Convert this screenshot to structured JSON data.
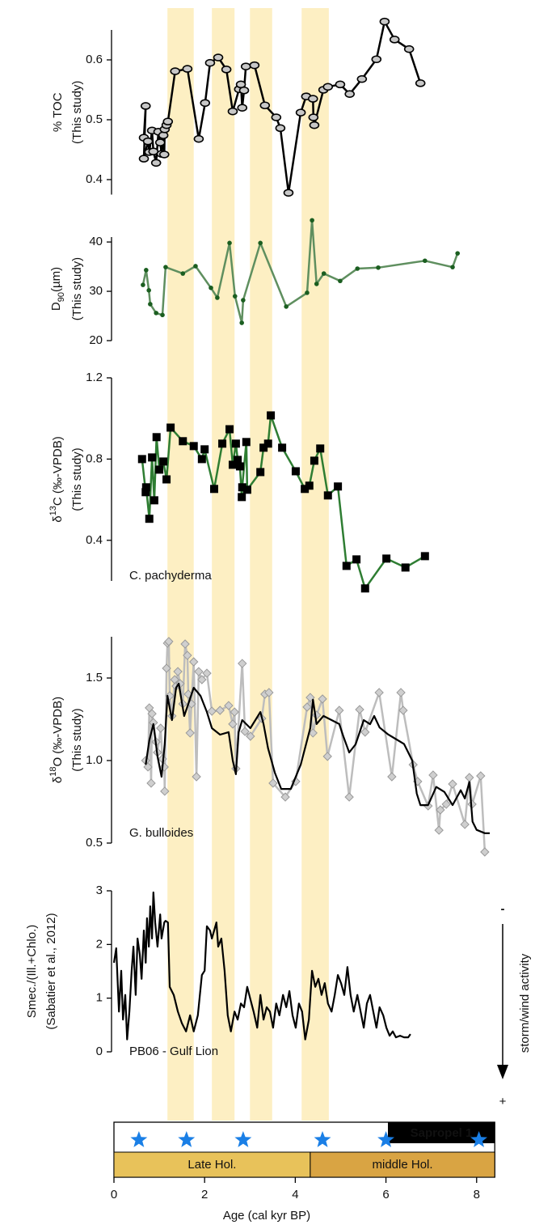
{
  "x_axis": {
    "label": "Age (cal kyr BP)",
    "xlim": [
      0,
      8.4
    ],
    "xticks": [
      0,
      2,
      4,
      6,
      8
    ]
  },
  "bands": {
    "color": "#fdefc3",
    "ranges": [
      [
        1.18,
        1.76
      ],
      [
        2.16,
        2.66
      ],
      [
        3.0,
        3.49
      ],
      [
        4.14,
        4.74
      ]
    ]
  },
  "chart_data": [
    {
      "type": "line",
      "ylabel": [
        [
          "% TOC"
        ],
        [
          "(This study)"
        ]
      ],
      "ylim": [
        0.375,
        0.65
      ],
      "yticks": [
        0.4,
        0.5,
        0.6
      ],
      "series": [
        {
          "color": "#000000",
          "marker": "ellipse",
          "marker_color": "#c8c8c8",
          "x": [
            0.66,
            0.7,
            0.66,
            0.75,
            0.78,
            0.84,
            0.87,
            0.93,
            0.98,
            1.02,
            1.05,
            1.09,
            1.11,
            1.12,
            1.16,
            1.19,
            1.35,
            1.62,
            1.87,
            2.01,
            2.12,
            2.3,
            2.48,
            2.62,
            2.76,
            2.8,
            2.83,
            2.87,
            2.91,
            3.1,
            3.33,
            3.58,
            3.67,
            3.85,
            4.12,
            4.24,
            4.39,
            4.4,
            4.42,
            4.62,
            4.72,
            4.99,
            5.2,
            5.47,
            5.79,
            5.97,
            6.19,
            6.51,
            6.76
          ],
          "values": [
            0.47,
            0.523,
            0.435,
            0.464,
            0.446,
            0.482,
            0.447,
            0.428,
            0.48,
            0.462,
            0.443,
            0.474,
            0.442,
            0.484,
            0.491,
            0.497,
            0.581,
            0.585,
            0.468,
            0.528,
            0.595,
            0.604,
            0.584,
            0.514,
            0.551,
            0.559,
            0.52,
            0.549,
            0.589,
            0.591,
            0.524,
            0.504,
            0.486,
            0.378,
            0.512,
            0.539,
            0.535,
            0.504,
            0.491,
            0.55,
            0.555,
            0.559,
            0.543,
            0.568,
            0.601,
            0.664,
            0.634,
            0.618,
            0.561
          ]
        }
      ]
    },
    {
      "type": "line",
      "ylabel": [
        [
          "D",
          {
            "sub": "90"
          },
          "(µm)"
        ],
        [
          "(This study)"
        ]
      ],
      "ylim": [
        20,
        41
      ],
      "yticks": [
        20,
        30,
        40
      ],
      "series": [
        {
          "color": "#5f8f5f",
          "marker": "circle",
          "marker_color": "#1b5e20",
          "x": [
            0.64,
            0.71,
            0.77,
            0.8,
            0.93,
            1.07,
            1.14,
            1.52,
            1.8,
            2.14,
            2.28,
            2.55,
            2.67,
            2.82,
            2.85,
            3.23,
            3.8,
            4.26,
            4.37,
            4.47,
            4.63,
            4.99,
            5.37,
            5.83,
            6.86,
            7.47,
            7.58
          ],
          "values": [
            31.3,
            34.3,
            30.2,
            27.4,
            25.6,
            25.2,
            34.9,
            33.6,
            35.1,
            30.7,
            28.7,
            39.8,
            29.0,
            23.6,
            28.2,
            39.8,
            26.9,
            29.7,
            44.4,
            31.5,
            33.6,
            32.1,
            34.6,
            34.8,
            36.2,
            34.9,
            37.7
          ]
        }
      ]
    },
    {
      "type": "line",
      "ylabel": [
        [
          "δ",
          {
            "sup": "13"
          },
          "C (‰-VPDB)"
        ],
        [
          "(This study)"
        ]
      ],
      "ylim": [
        0.2,
        1.2
      ],
      "yticks": [
        0.4,
        0.8,
        1.2
      ],
      "annotation": "C. pachyderma",
      "series": [
        {
          "color": "#2e7d32",
          "marker": "square",
          "marker_color": "#000000",
          "x": [
            0.62,
            0.7,
            0.71,
            0.78,
            0.84,
            0.89,
            0.94,
            1.0,
            1.09,
            1.16,
            1.25,
            1.52,
            1.76,
            1.94,
            2.0,
            2.21,
            2.39,
            2.55,
            2.62,
            2.69,
            2.73,
            2.78,
            2.82,
            2.83,
            2.92,
            2.94,
            3.23,
            3.3,
            3.4,
            3.46,
            3.71,
            4.01,
            4.21,
            4.31,
            4.42,
            4.55,
            4.72,
            4.94,
            5.13,
            5.35,
            5.54,
            6.01,
            6.43,
            6.86
          ],
          "values": [
            0.8,
            0.637,
            0.661,
            0.506,
            0.808,
            0.597,
            0.908,
            0.748,
            0.788,
            0.7,
            0.955,
            0.888,
            0.864,
            0.8,
            0.848,
            0.653,
            0.876,
            0.947,
            0.772,
            0.876,
            0.796,
            0.764,
            0.613,
            0.661,
            0.884,
            0.649,
            0.736,
            0.856,
            0.876,
            1.015,
            0.856,
            0.74,
            0.653,
            0.669,
            0.792,
            0.852,
            0.621,
            0.665,
            0.274,
            0.306,
            0.163,
            0.31,
            0.266,
            0.322
          ]
        }
      ]
    },
    {
      "type": "line",
      "ylabel": [
        [
          "δ",
          {
            "sup": "18"
          },
          "O (‰-VPDB)"
        ],
        [
          "(This study)"
        ]
      ],
      "ylim": [
        0.5,
        1.75
      ],
      "yticks": [
        1.5,
        {
          "value": 1,
          "label": "1.0"
        },
        0.5
      ],
      "annotation": "G. bulloides",
      "series": [
        {
          "color": "#bdbdbd",
          "marker": "diamond",
          "marker_color": "#cfcfcf",
          "x": [
            0.7,
            0.75,
            0.78,
            0.82,
            0.84,
            0.87,
            0.93,
            0.96,
            1.03,
            1.07,
            1.11,
            1.12,
            1.16,
            1.18,
            1.21,
            1.23,
            1.28,
            1.34,
            1.37,
            1.41,
            1.46,
            1.52,
            1.57,
            1.62,
            1.64,
            1.68,
            1.71,
            1.76,
            1.82,
            1.87,
            1.94,
            2.05,
            2.16,
            2.34,
            2.53,
            2.62,
            2.66,
            2.69,
            2.83,
            2.89,
            3.01,
            3.26,
            3.33,
            3.42,
            3.51,
            3.78,
            4.01,
            4.26,
            4.33,
            4.39,
            4.47,
            4.6,
            4.71,
            4.97,
            5.19,
            5.42,
            5.54,
            5.85,
            6.13,
            6.33,
            6.38,
            6.6,
            6.7,
            6.93,
            7.04,
            7.17,
            7.2,
            7.33,
            7.47,
            7.74,
            7.84,
            7.9,
            8.09,
            8.18
          ],
          "values": [
            1.0,
            0.961,
            1.319,
            0.863,
            1.284,
            1.23,
            1.113,
            1.049,
            1.196,
            1.01,
            0.961,
            0.814,
            1.559,
            1.711,
            1.721,
            1.392,
            1.27,
            1.49,
            1.451,
            1.539,
            1.466,
            1.343,
            1.706,
            1.637,
            1.402,
            1.167,
            1.343,
            1.598,
            0.902,
            1.539,
            1.49,
            1.529,
            1.299,
            1.304,
            1.333,
            1.221,
            1.294,
            0.951,
            1.588,
            1.176,
            1.147,
            1.255,
            1.402,
            1.412,
            0.863,
            0.779,
            0.873,
            1.324,
            1.382,
            1.167,
            1.275,
            1.373,
            1.025,
            1.304,
            0.779,
            1.309,
            1.172,
            1.412,
            0.902,
            1.412,
            1.304,
            0.975,
            0.873,
            0.725,
            0.912,
            0.578,
            0.701,
            0.735,
            0.858,
            0.613,
            0.897,
            0.735,
            0.907,
            0.446
          ]
        },
        {
          "color": "#000000",
          "x": [
            0.7,
            0.78,
            0.87,
            0.96,
            1.05,
            1.12,
            1.18,
            1.28,
            1.37,
            1.43,
            1.55,
            1.64,
            1.76,
            1.91,
            2.05,
            2.16,
            2.34,
            2.53,
            2.62,
            2.69,
            2.75,
            2.83,
            3.01,
            3.23,
            3.3,
            3.4,
            3.55,
            3.69,
            3.9,
            4.12,
            4.33,
            4.39,
            4.47,
            4.62,
            4.8,
            4.97,
            5.06,
            5.19,
            5.33,
            5.51,
            5.65,
            5.74,
            5.86,
            6.04,
            6.22,
            6.4,
            6.58,
            6.68,
            6.76,
            6.93,
            7.11,
            7.29,
            7.47,
            7.65,
            7.74,
            7.84,
            7.91,
            8.0,
            8.18,
            8.29
          ],
          "values": [
            0.975,
            1.123,
            1.221,
            1.025,
            0.902,
            1.098,
            1.392,
            1.245,
            1.441,
            1.466,
            1.27,
            1.343,
            1.441,
            1.392,
            1.294,
            1.196,
            1.157,
            1.172,
            1.0,
            0.917,
            1.172,
            1.245,
            1.196,
            1.294,
            1.221,
            1.074,
            0.926,
            0.828,
            0.828,
            0.975,
            1.196,
            1.368,
            1.221,
            1.27,
            1.245,
            1.221,
            1.147,
            1.049,
            1.098,
            1.245,
            1.22,
            1.27,
            1.2,
            1.16,
            1.13,
            1.1,
            1.0,
            0.8,
            0.73,
            0.73,
            0.84,
            0.81,
            0.73,
            0.82,
            0.77,
            0.87,
            0.63,
            0.58,
            0.56,
            0.56
          ]
        }
      ]
    },
    {
      "type": "line",
      "ylabel": [
        [
          "Smec./(Ill.+Chlo.)"
        ],
        [
          "(Sabatier et al., 2012)"
        ]
      ],
      "ylim": [
        0,
        3
      ],
      "yticks": [
        0,
        1,
        2,
        3
      ],
      "annotation": "PB06 - Gulf Lion",
      "series": [
        {
          "color": "#000000",
          "x": [
            0,
            0.05,
            0.11,
            0.16,
            0.2,
            0.25,
            0.29,
            0.34,
            0.39,
            0.43,
            0.48,
            0.52,
            0.57,
            0.61,
            0.66,
            0.7,
            0.73,
            0.77,
            0.8,
            0.84,
            0.87,
            0.91,
            0.96,
            1.02,
            1.05,
            1.11,
            1.14,
            1.19,
            1.23,
            1.32,
            1.41,
            1.5,
            1.59,
            1.68,
            1.76,
            1.85,
            1.94,
            2.0,
            2.05,
            2.12,
            2.16,
            2.21,
            2.26,
            2.3,
            2.37,
            2.44,
            2.51,
            2.58,
            2.66,
            2.73,
            2.8,
            2.87,
            2.94,
            3.01,
            3.08,
            3.16,
            3.23,
            3.3,
            3.37,
            3.44,
            3.51,
            3.58,
            3.65,
            3.73,
            3.8,
            3.87,
            3.94,
            4.01,
            4.08,
            4.15,
            4.22,
            4.3,
            4.37,
            4.44,
            4.51,
            4.58,
            4.65,
            4.72,
            4.8,
            4.87,
            4.94,
            5.01,
            5.08,
            5.15,
            5.22,
            5.29,
            5.37,
            5.44,
            5.51,
            5.58,
            5.65,
            5.72,
            5.79,
            5.86,
            5.94,
            6.01,
            6.08,
            6.15,
            6.22,
            6.31,
            6.4,
            6.49,
            6.54
          ],
          "values": [
            1.66,
            1.93,
            0.75,
            1.51,
            0.6,
            1.06,
            0.23,
            0.75,
            1.51,
            1.96,
            1.06,
            2.11,
            1.81,
            1.36,
            2.26,
            1.66,
            2.49,
            1.96,
            2.71,
            2.11,
            2.97,
            2.41,
            1.96,
            2.56,
            2.11,
            2.41,
            2.44,
            2.41,
            1.21,
            1.06,
            0.75,
            0.53,
            0.38,
            0.68,
            0.38,
            0.68,
            1.43,
            1.51,
            2.34,
            2.26,
            2.11,
            2.26,
            2.41,
            1.96,
            2.11,
            1.51,
            0.68,
            0.38,
            0.75,
            0.6,
            0.9,
            0.83,
            1.21,
            0.98,
            0.75,
            0.45,
            1.06,
            0.6,
            0.83,
            0.75,
            0.45,
            0.9,
            0.68,
            1.06,
            0.83,
            1.13,
            0.68,
            0.45,
            0.9,
            0.75,
            0.23,
            0.6,
            1.51,
            1.21,
            1.36,
            1.06,
            1.28,
            0.9,
            0.75,
            1.06,
            1.43,
            1.28,
            1.06,
            1.58,
            1.06,
            0.75,
            1.06,
            0.75,
            0.45,
            0.9,
            1.06,
            0.75,
            0.45,
            0.83,
            0.68,
            0.45,
            0.3,
            0.38,
            0.27,
            0.3,
            0.27,
            0.27,
            0.33
          ]
        }
      ]
    }
  ],
  "side_scale": {
    "top": "-",
    "bottom": "+",
    "label": "storm/wind activity"
  },
  "timeline": {
    "label": "Sapropel 1",
    "star_color": "#1a7fe6",
    "stars": [
      0.55,
      1.6,
      2.85,
      4.6,
      6.0,
      8.05
    ],
    "periods": [
      {
        "label": "Late Hol.",
        "range": [
          0,
          4.33
        ],
        "color": "#e8c25a"
      },
      {
        "label": "middle Hol.",
        "range": [
          4.33,
          8.4
        ],
        "color": "#d9a443"
      }
    ]
  }
}
